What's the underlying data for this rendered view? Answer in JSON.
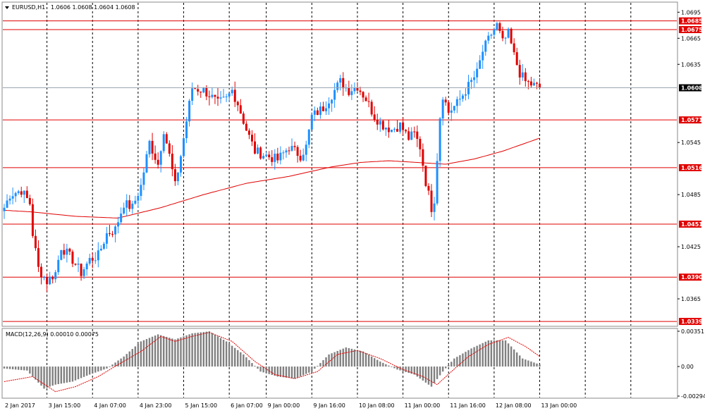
{
  "chart_data": {
    "type": "candlestick",
    "symbol_label": "EURUSD,H1",
    "ohlc_label": "1.0606 1.0608 1.0604 1.0608",
    "price_axis": {
      "range": [
        1.0335,
        1.0705
      ],
      "ticks": [
        "1.0695",
        "1.0665",
        "1.0635",
        "1.0545",
        "1.0485",
        "1.0425",
        "1.0365"
      ]
    },
    "current_price": "1.0608",
    "levels": [
      "1.0685",
      "1.0675",
      "1.0571",
      "1.0516",
      "1.0451",
      "1.0390",
      "1.0339"
    ],
    "time_axis": {
      "labels": [
        "2 Jan 2017",
        "3 Jan 15:00",
        "4 Jan 07:00",
        "4 Jan 23:00",
        "5 Jan 15:00",
        "6 Jan 07:00",
        "9 Jan 00:00",
        "9 Jan 16:00",
        "10 Jan 08:00",
        "11 Jan 00:00",
        "11 Jan 16:00",
        "12 Jan 08:00",
        "13 Jan 00:00"
      ]
    },
    "anchors": [
      [
        0,
        1.047
      ],
      [
        2,
        1.0485
      ],
      [
        6,
        1.049
      ],
      [
        9,
        1.0475
      ],
      [
        10,
        1.044
      ],
      [
        12,
        1.04
      ],
      [
        15,
        1.0385
      ],
      [
        18,
        1.0395
      ],
      [
        20,
        1.0425
      ],
      [
        24,
        1.041
      ],
      [
        27,
        1.0395
      ],
      [
        30,
        1.041
      ],
      [
        33,
        1.0415
      ],
      [
        36,
        1.044
      ],
      [
        39,
        1.0445
      ],
      [
        42,
        1.0475
      ],
      [
        45,
        1.047
      ],
      [
        48,
        1.0495
      ],
      [
        51,
        1.0545
      ],
      [
        54,
        1.052
      ],
      [
        56,
        1.056
      ],
      [
        58,
        1.053
      ],
      [
        60,
        1.0495
      ],
      [
        62,
        1.053
      ],
      [
        64,
        1.057
      ],
      [
        66,
        1.0608
      ],
      [
        70,
        1.0605
      ],
      [
        72,
        1.06
      ],
      [
        75,
        1.059
      ],
      [
        78,
        1.0595
      ],
      [
        80,
        1.0605
      ],
      [
        82,
        1.059
      ],
      [
        85,
        1.056
      ],
      [
        88,
        1.0535
      ],
      [
        92,
        1.053
      ],
      [
        96,
        1.0525
      ],
      [
        100,
        1.054
      ],
      [
        104,
        1.053
      ],
      [
        106,
        1.054
      ],
      [
        108,
        1.0575
      ],
      [
        112,
        1.0585
      ],
      [
        115,
        1.06
      ],
      [
        118,
        1.0615
      ],
      [
        121,
        1.0605
      ],
      [
        124,
        1.061
      ],
      [
        127,
        1.0595
      ],
      [
        130,
        1.0575
      ],
      [
        133,
        1.0565
      ],
      [
        136,
        1.056
      ],
      [
        139,
        1.0565
      ],
      [
        142,
        1.055
      ],
      [
        144,
        1.0555
      ],
      [
        146,
        1.054
      ],
      [
        148,
        1.05
      ],
      [
        150,
        1.047
      ],
      [
        151,
        1.048
      ],
      [
        153,
        1.0575
      ],
      [
        154,
        1.06
      ],
      [
        156,
        1.058
      ],
      [
        159,
        1.059
      ],
      [
        163,
        1.061
      ],
      [
        166,
        1.0625
      ],
      [
        168,
        1.065
      ],
      [
        171,
        1.067
      ],
      [
        173,
        1.068
      ],
      [
        175,
        1.066
      ],
      [
        177,
        1.067
      ],
      [
        179,
        1.0645
      ],
      [
        181,
        1.0625
      ],
      [
        183,
        1.0615
      ],
      [
        185,
        1.0612
      ],
      [
        188,
        1.0608
      ]
    ],
    "ma_anchors": [
      [
        0,
        1.0467
      ],
      [
        10,
        1.0465
      ],
      [
        25,
        1.046
      ],
      [
        40,
        1.0458
      ],
      [
        55,
        1.047
      ],
      [
        70,
        1.0485
      ],
      [
        85,
        1.0498
      ],
      [
        100,
        1.0506
      ],
      [
        115,
        1.0517
      ],
      [
        125,
        1.0522
      ],
      [
        135,
        1.0524
      ],
      [
        145,
        1.0522
      ],
      [
        155,
        1.052
      ],
      [
        165,
        1.0526
      ],
      [
        175,
        1.0535
      ],
      [
        188,
        1.055
      ]
    ],
    "macd": {
      "label": "MACD(12,26,9) 0.00010 0.00075",
      "range": [
        -0.00294,
        0.00351
      ],
      "ticks": [
        "0.00351",
        "0.00",
        "-0.00294"
      ],
      "hist_anchors": [
        [
          0,
          -0.0002
        ],
        [
          8,
          -0.0004
        ],
        [
          14,
          -0.0022
        ],
        [
          18,
          -0.0018
        ],
        [
          24,
          -0.0015
        ],
        [
          30,
          -0.0008
        ],
        [
          36,
          -0.0002
        ],
        [
          42,
          0.001
        ],
        [
          48,
          0.0025
        ],
        [
          54,
          0.0032
        ],
        [
          60,
          0.0027
        ],
        [
          66,
          0.0033
        ],
        [
          72,
          0.0035
        ],
        [
          78,
          0.0025
        ],
        [
          84,
          0.0012
        ],
        [
          90,
          -0.0005
        ],
        [
          96,
          -0.001
        ],
        [
          102,
          -0.0012
        ],
        [
          108,
          -0.0005
        ],
        [
          114,
          0.0012
        ],
        [
          120,
          0.0019
        ],
        [
          126,
          0.0015
        ],
        [
          132,
          0.0005
        ],
        [
          138,
          -0.0003
        ],
        [
          144,
          -0.0008
        ],
        [
          150,
          -0.002
        ],
        [
          154,
          -0.0005
        ],
        [
          158,
          0.0008
        ],
        [
          164,
          0.0018
        ],
        [
          170,
          0.0026
        ],
        [
          176,
          0.0026
        ],
        [
          182,
          0.0008
        ],
        [
          188,
          0.0002
        ]
      ],
      "signal_anchors": [
        [
          0,
          -0.0015
        ],
        [
          10,
          -0.001
        ],
        [
          18,
          -0.0025
        ],
        [
          25,
          -0.002
        ],
        [
          33,
          -0.001
        ],
        [
          40,
          0.0002
        ],
        [
          48,
          0.0015
        ],
        [
          55,
          0.003
        ],
        [
          60,
          0.0025
        ],
        [
          66,
          0.003
        ],
        [
          72,
          0.0034
        ],
        [
          80,
          0.0025
        ],
        [
          88,
          0.0005
        ],
        [
          95,
          -0.0008
        ],
        [
          102,
          -0.0012
        ],
        [
          110,
          -0.0005
        ],
        [
          117,
          0.0012
        ],
        [
          124,
          0.0016
        ],
        [
          132,
          0.0008
        ],
        [
          140,
          -0.0003
        ],
        [
          147,
          -0.001
        ],
        [
          152,
          -0.0018
        ],
        [
          157,
          -0.0005
        ],
        [
          163,
          0.001
        ],
        [
          170,
          0.0022
        ],
        [
          177,
          0.0029
        ],
        [
          183,
          0.002
        ],
        [
          188,
          0.001
        ]
      ]
    }
  }
}
